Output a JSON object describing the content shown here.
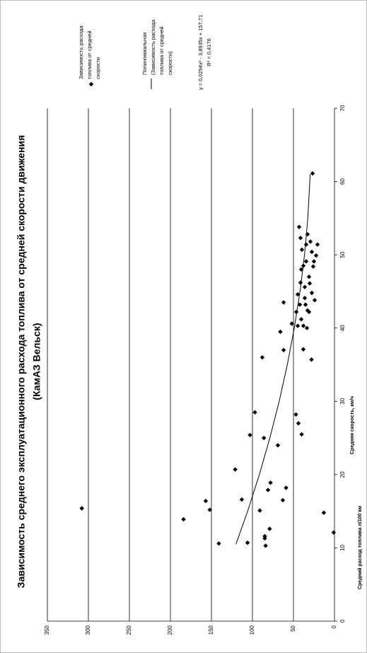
{
  "chart_data": {
    "type": "scatter",
    "title": "Зависимость среднего эксплуатационного расхода топлива от средней скорости движения",
    "subtitle": "(КамАЗ Вельск)",
    "x_label": "Средняя скорость, км/ч",
    "y_label": "Средний расход топлива л/100 км",
    "xlim": [
      0,
      70
    ],
    "xticks": [
      0,
      10,
      20,
      30,
      40,
      50,
      60,
      70
    ],
    "ylim": [
      0,
      350
    ],
    "yticks": [
      0,
      50,
      100,
      150,
      200,
      250,
      300,
      350
    ],
    "grid": true,
    "series": [
      {
        "name": "Зависимость расхода топлива от средней скорости",
        "type": "scatter",
        "color": "#000000",
        "x": [
          15.4,
          13.9,
          16.4,
          15.2,
          10.6,
          10.7,
          16.6,
          20.7,
          10.3,
          12.6,
          11.6,
          11.3,
          15.1,
          17.9,
          18.9,
          18.2,
          16.5,
          14.8,
          12.1,
          25.4,
          25.0,
          24.0,
          28.5,
          28.2,
          27.0,
          25.5,
          36.0,
          37.0,
          39.5,
          37.1,
          35.7,
          43.5,
          40.6,
          42.2,
          43.2,
          43.2,
          41.2,
          42.2,
          40.0,
          40.3,
          44.8,
          45.6,
          46.2,
          47.0,
          48.5,
          48.4,
          49.1,
          50.4,
          50.7,
          51.4,
          51.8,
          52.3,
          51.4,
          49.9,
          53.8,
          48.0,
          46.1,
          43.8,
          44.1,
          42.4,
          44.6,
          40.3,
          49.1,
          52.8,
          61.1
        ],
        "values": [
          308,
          184,
          157,
          152,
          141,
          106,
          113,
          121,
          84,
          79,
          85,
          85,
          91,
          81,
          78,
          59,
          63,
          13,
          1,
          103,
          86,
          69,
          97,
          47,
          44,
          40,
          88,
          62,
          66,
          38,
          28,
          62,
          52,
          46.5,
          42.2,
          35.3,
          40.5,
          31.0,
          33.6,
          44.8,
          27.6,
          36.2,
          41.4,
          31.0,
          37.9,
          25.9,
          34.5,
          27.6,
          39.7,
          34.5,
          29.3,
          41.4,
          20.7,
          22.4,
          43.1,
          40.5,
          30.2,
          24.1,
          36.2,
          32.8,
          44.8,
          37.9,
          25.0,
          32.8,
          26.7
        ]
      },
      {
        "name": "Полиномиальная (Зависимость расхода топлива от средней скорости)",
        "type": "line",
        "color": "#000000",
        "x": [
          10.5,
          15,
          20,
          25,
          30,
          35,
          40,
          45,
          50,
          55,
          61
        ],
        "values": [
          120.1,
          105.9,
          91.6,
          78.8,
          67.4,
          57.5,
          49.0,
          42.0,
          36.5,
          32.5,
          29.6
        ]
      }
    ],
    "trendline_equation": "y = 0,0294x² - 3,8935x + 157,71",
    "trendline_r2": "R² = 0,4176"
  }
}
